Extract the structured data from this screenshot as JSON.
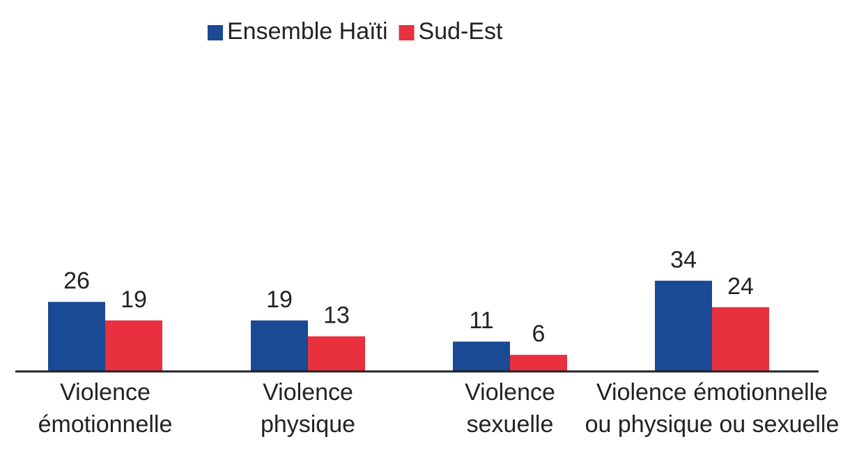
{
  "chart_data": {
    "type": "bar",
    "categories": [
      "Violence émotionnelle",
      "Violence physique",
      "Violence sexuelle",
      "Violence émotionnelle ou physique ou sexuelle"
    ],
    "series": [
      {
        "name": "Ensemble Haïti",
        "color": "#1a4a94",
        "values": [
          26,
          19,
          11,
          34
        ]
      },
      {
        "name": "Sud-Est",
        "color": "#e8303f",
        "values": [
          19,
          13,
          6,
          24
        ]
      }
    ],
    "legend": "top"
  }
}
